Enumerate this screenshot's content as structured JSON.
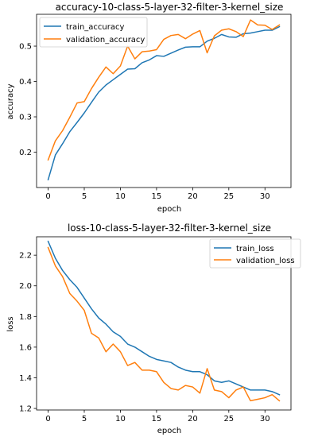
{
  "chart_data": [
    {
      "type": "line",
      "title": "accuracy-10-class-5-layer-32-filter-3-kernel_size",
      "xlabel": "epoch",
      "ylabel": "accuracy",
      "xlim": [
        -1.6,
        33.6
      ],
      "ylim": [
        0.1,
        0.59
      ],
      "xticks": [
        0,
        5,
        10,
        15,
        20,
        25,
        30
      ],
      "yticks": [
        0.2,
        0.3,
        0.4,
        0.5
      ],
      "ytick_labels": [
        "0.2",
        "0.3",
        "0.4",
        "0.5"
      ],
      "legend_position": "top-left",
      "grid": false,
      "x": [
        0,
        1,
        2,
        3,
        4,
        5,
        6,
        7,
        8,
        9,
        10,
        11,
        12,
        13,
        14,
        15,
        16,
        17,
        18,
        19,
        20,
        21,
        22,
        23,
        24,
        25,
        26,
        27,
        28,
        29,
        30,
        31,
        32
      ],
      "series": [
        {
          "name": "train_accuracy",
          "color": "#1f77b4",
          "values": [
            0.122,
            0.192,
            0.224,
            0.258,
            0.284,
            0.311,
            0.341,
            0.37,
            0.39,
            0.405,
            0.42,
            0.435,
            0.436,
            0.453,
            0.461,
            0.473,
            0.471,
            0.48,
            0.489,
            0.497,
            0.498,
            0.498,
            0.514,
            0.522,
            0.533,
            0.526,
            0.525,
            0.535,
            0.537,
            0.541,
            0.545,
            0.545,
            0.555
          ]
        },
        {
          "name": "validation_accuracy",
          "color": "#ff7f0e",
          "values": [
            0.178,
            0.232,
            0.261,
            0.299,
            0.339,
            0.343,
            0.38,
            0.412,
            0.441,
            0.422,
            0.444,
            0.5,
            0.464,
            0.484,
            0.486,
            0.49,
            0.519,
            0.53,
            0.533,
            0.521,
            0.534,
            0.544,
            0.481,
            0.529,
            0.545,
            0.549,
            0.541,
            0.527,
            0.574,
            0.56,
            0.559,
            0.547,
            0.56
          ]
        }
      ]
    },
    {
      "type": "line",
      "title": "loss-10-class-5-layer-32-filter-3-kernel_size",
      "xlabel": "epoch",
      "ylabel": "loss",
      "xlim": [
        -1.6,
        33.6
      ],
      "ylim": [
        1.19,
        2.32
      ],
      "xticks": [
        0,
        5,
        10,
        15,
        20,
        25,
        30
      ],
      "yticks": [
        1.2,
        1.4,
        1.6,
        1.8,
        2.0,
        2.2
      ],
      "ytick_labels": [
        "1.2",
        "1.4",
        "1.6",
        "1.8",
        "2.0",
        "2.2"
      ],
      "legend_position": "top-right",
      "grid": false,
      "x": [
        0,
        1,
        2,
        3,
        4,
        5,
        6,
        7,
        8,
        9,
        10,
        11,
        12,
        13,
        14,
        15,
        16,
        17,
        18,
        19,
        20,
        21,
        22,
        23,
        24,
        25,
        26,
        27,
        28,
        29,
        30,
        31,
        32
      ],
      "series": [
        {
          "name": "train_loss",
          "color": "#1f77b4",
          "values": [
            2.29,
            2.18,
            2.1,
            2.04,
            1.99,
            1.92,
            1.85,
            1.79,
            1.75,
            1.7,
            1.67,
            1.62,
            1.6,
            1.57,
            1.54,
            1.52,
            1.51,
            1.5,
            1.47,
            1.45,
            1.44,
            1.44,
            1.42,
            1.38,
            1.37,
            1.38,
            1.36,
            1.34,
            1.32,
            1.32,
            1.32,
            1.31,
            1.29
          ]
        },
        {
          "name": "validation_loss",
          "color": "#ff7f0e",
          "values": [
            2.25,
            2.13,
            2.06,
            1.95,
            1.9,
            1.84,
            1.69,
            1.66,
            1.57,
            1.62,
            1.57,
            1.48,
            1.5,
            1.45,
            1.45,
            1.44,
            1.37,
            1.33,
            1.32,
            1.35,
            1.34,
            1.3,
            1.46,
            1.32,
            1.31,
            1.27,
            1.32,
            1.34,
            1.25,
            1.26,
            1.27,
            1.29,
            1.25
          ]
        }
      ]
    }
  ]
}
